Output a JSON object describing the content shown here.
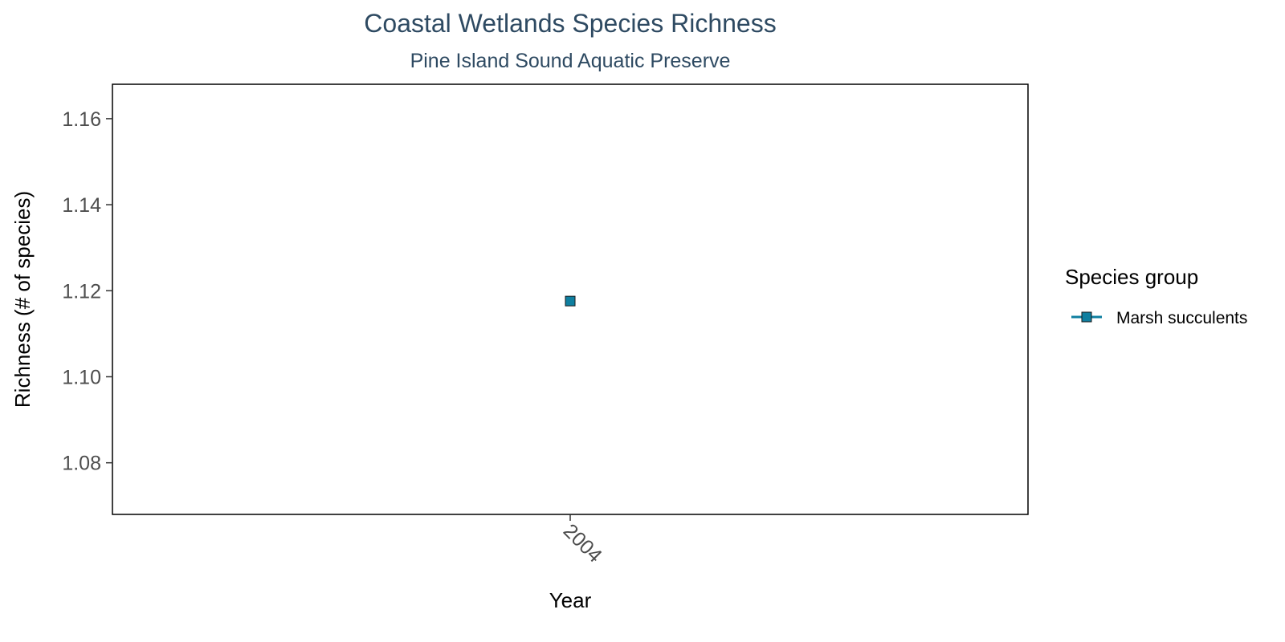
{
  "chart_data": {
    "type": "scatter",
    "title": "Coastal Wetlands Species Richness",
    "subtitle": "Pine Island Sound Aquatic Preserve",
    "xlabel": "Year",
    "ylabel": "Richness (# of species)",
    "categories": [
      "2004"
    ],
    "yticks": [
      "1.08",
      "1.10",
      "1.12",
      "1.14",
      "1.16"
    ],
    "ylim": [
      1.068,
      1.168
    ],
    "grid": false,
    "legend": {
      "title": "Species group",
      "placement": "right"
    },
    "series": [
      {
        "name": "Marsh succulents",
        "color": "#0f7fa0",
        "marker": "square",
        "points": [
          {
            "x": "2004",
            "y": 1.1176
          }
        ]
      }
    ]
  }
}
